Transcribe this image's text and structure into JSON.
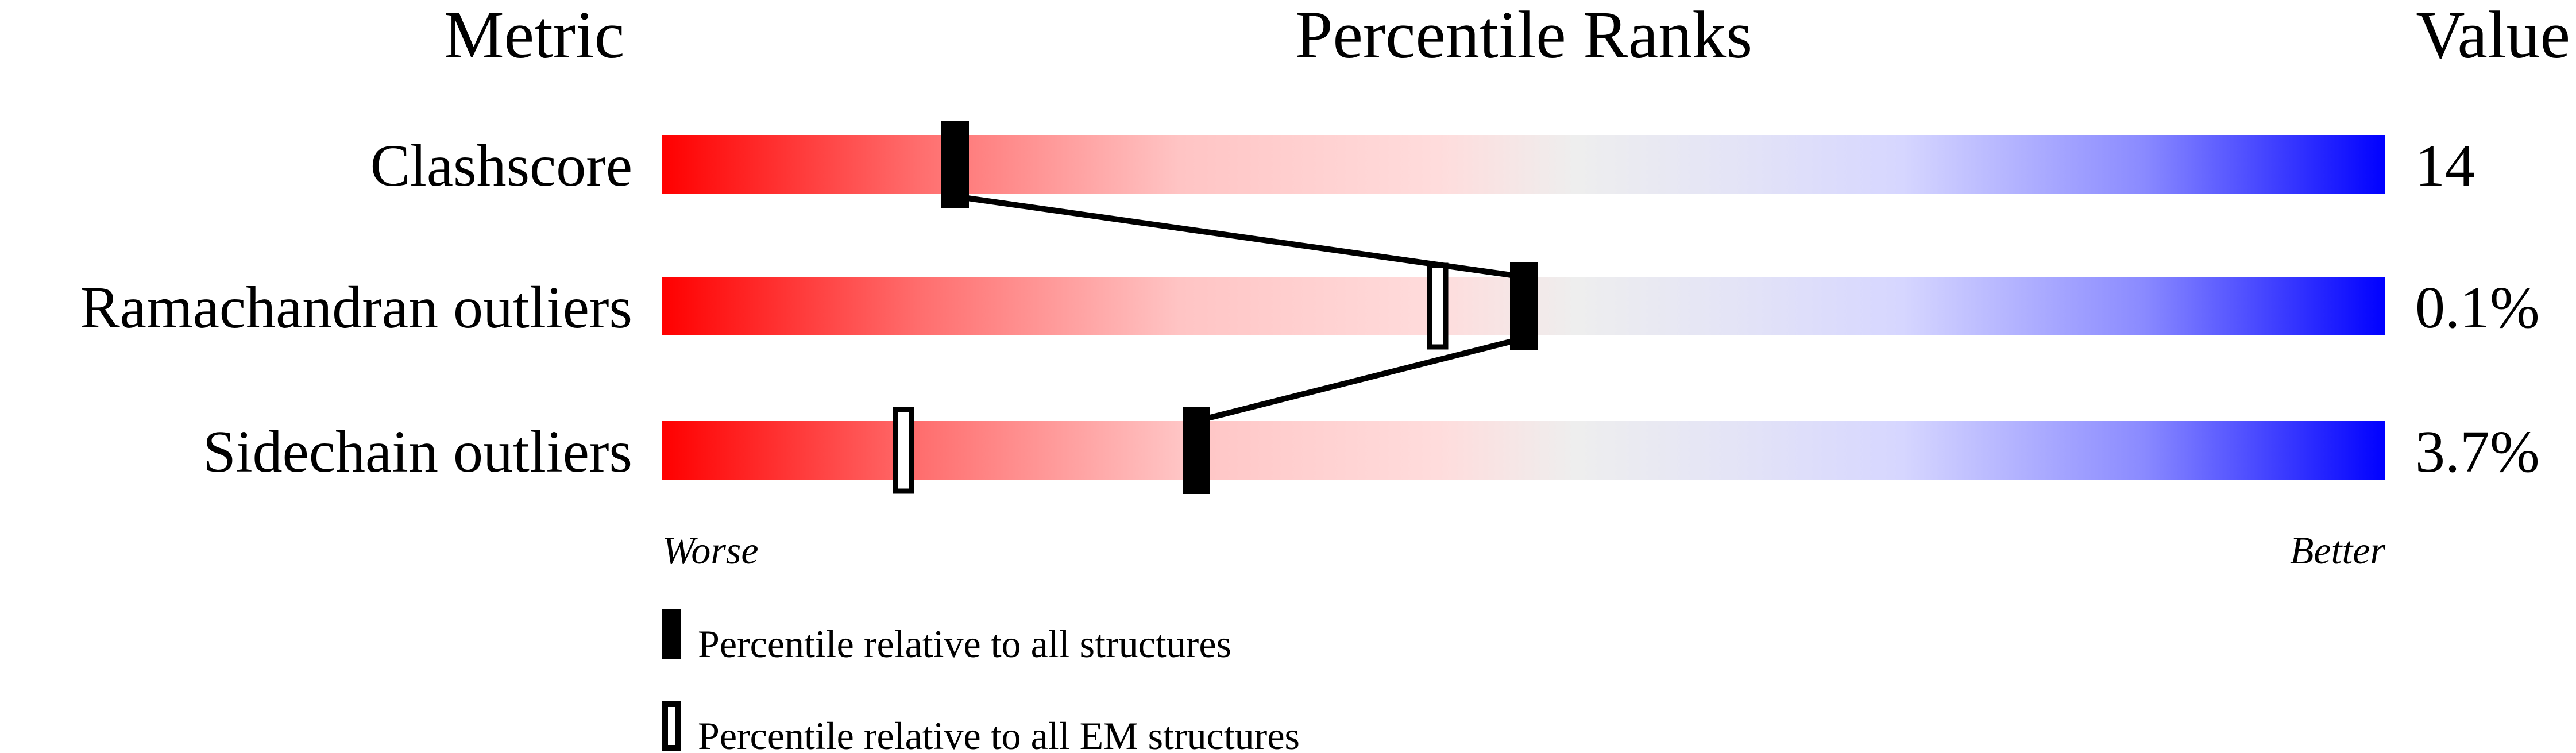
{
  "chart_data": {
    "type": "percentile-bar",
    "headers": {
      "metric": "Metric",
      "ranks": "Percentile Ranks",
      "value": "Value"
    },
    "xlim": [
      0,
      100
    ],
    "rows": [
      {
        "metric": "Clashscore",
        "value": "14",
        "percentile_all": 17,
        "percentile_em": null
      },
      {
        "metric": "Ramachandran outliers",
        "value": "0.1%",
        "percentile_all": 50,
        "percentile_em": 45
      },
      {
        "metric": "Sidechain outliers",
        "value": "3.7%",
        "percentile_all": 31,
        "percentile_em": 14
      }
    ],
    "axis_notes": {
      "left": "Worse",
      "right": "Better"
    },
    "legend": [
      {
        "marker": "filled",
        "label": "Percentile relative to all structures"
      },
      {
        "marker": "open",
        "label": "Percentile relative to all EM structures"
      }
    ],
    "colors": {
      "worse": "#ff0000",
      "middle": "#eeeeee",
      "better": "#0000ff",
      "marker": "#000000"
    }
  }
}
